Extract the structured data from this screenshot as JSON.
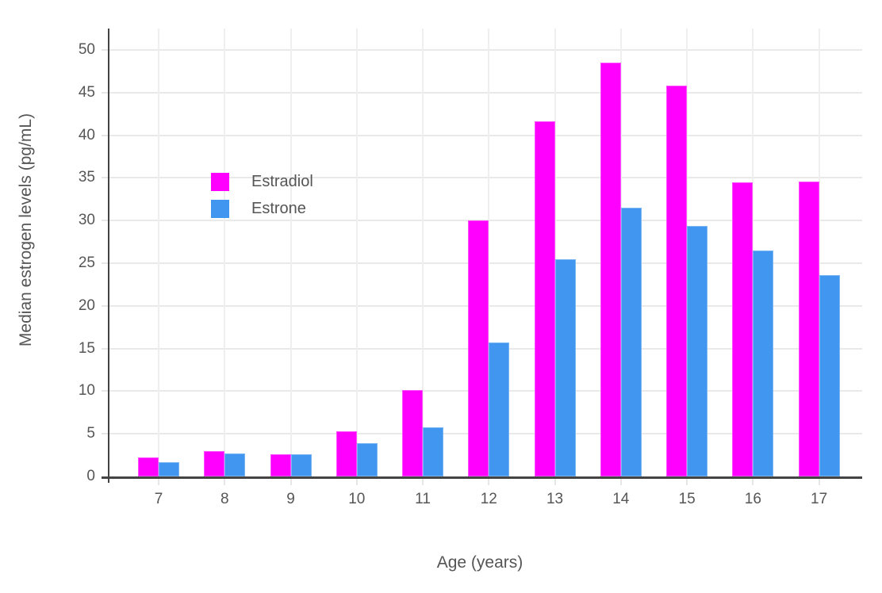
{
  "chart_data": {
    "type": "bar",
    "title": "",
    "xlabel": "Age (years)",
    "ylabel": "Median estrogen levels (pg/mL)",
    "categories": [
      "7",
      "8",
      "9",
      "10",
      "11",
      "12",
      "13",
      "14",
      "15",
      "16",
      "17"
    ],
    "series": [
      {
        "name": "Estradiol",
        "color": "#ff00ff",
        "values": [
          2.2,
          3.0,
          2.6,
          5.3,
          10.1,
          30.0,
          41.6,
          48.5,
          45.8,
          34.5,
          34.6
        ]
      },
      {
        "name": "Estrone",
        "color": "#4196f0",
        "values": [
          1.7,
          2.7,
          2.6,
          3.9,
          5.8,
          15.7,
          25.5,
          31.5,
          29.4,
          26.5,
          23.6
        ]
      }
    ],
    "ylim": [
      0,
      52.5
    ],
    "yticks": [
      0,
      5,
      10,
      15,
      20,
      25,
      30,
      35,
      40,
      45,
      50
    ],
    "grid": true,
    "legend_position": "inside-upper-left",
    "background": "#ffffff",
    "gridline_color": "#e9e9e9",
    "axis_line_color": "#444444",
    "tick_label_color": "#565656"
  }
}
